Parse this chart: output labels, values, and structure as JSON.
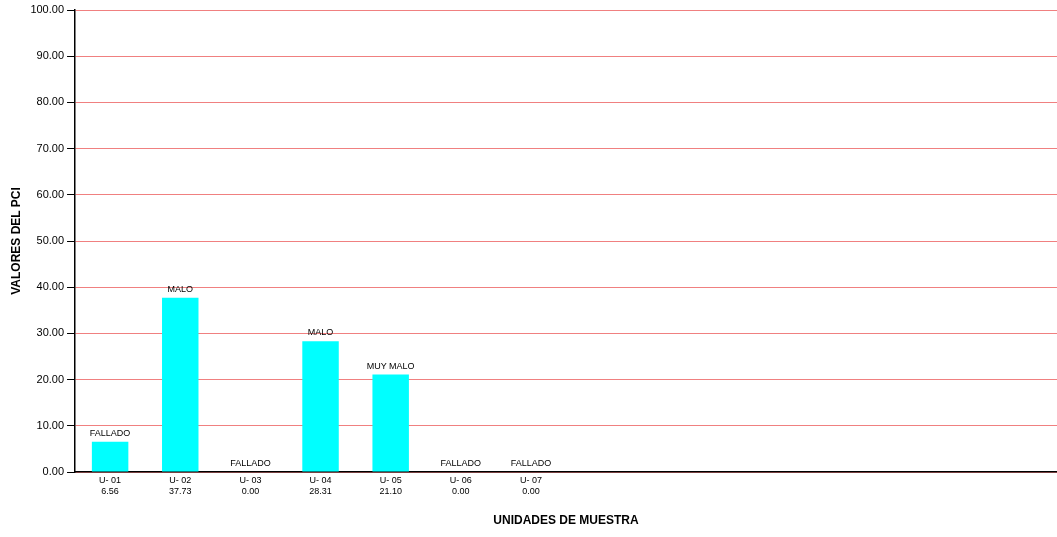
{
  "chart_data": {
    "type": "bar",
    "xlabel": "UNIDADES DE MUESTRA",
    "ylabel": "VALORES DEL PCI",
    "categories": [
      "U- 01",
      "U- 02",
      "U- 03",
      "U- 04",
      "U- 05",
      "U- 06",
      "U- 07",
      null,
      null,
      null,
      null,
      null,
      null,
      null
    ],
    "values": [
      6.56,
      37.73,
      0,
      28.31,
      21.1,
      0,
      0,
      null,
      null,
      null,
      null,
      null,
      null,
      null
    ],
    "value_labels": [
      "6.56",
      "37.73",
      "0.00",
      "28.31",
      "21.10",
      "0.00",
      "0.00",
      null,
      null,
      null,
      null,
      null,
      null,
      null
    ],
    "color": "#00ffff",
    "ylim": [
      0,
      100
    ],
    "yticks": [
      {
        "value": 0,
        "label": "0.00"
      },
      {
        "value": 10,
        "label": "10.00"
      },
      {
        "value": 20,
        "label": "20.00"
      },
      {
        "value": 30,
        "label": "30.00"
      },
      {
        "value": 40,
        "label": "40.00"
      },
      {
        "value": 50,
        "label": "50.00"
      },
      {
        "value": 60,
        "label": "60.00"
      },
      {
        "value": 70,
        "label": "70.00"
      },
      {
        "value": 80,
        "label": "80.00"
      },
      {
        "value": 90,
        "label": "90.00"
      },
      {
        "value": 100,
        "label": "100.00"
      }
    ],
    "grid": "y",
    "annotations": [
      {
        "text": "FALLADO",
        "x": "U- 01",
        "y": 6.56
      },
      {
        "text": "MALO",
        "x": "U- 02",
        "y": 37.73
      },
      {
        "text": "FALLADO",
        "x": "U- 03",
        "y": 0
      },
      {
        "text": "MALO",
        "x": "U- 04",
        "y": 28.31
      },
      {
        "text": "MUY MALO",
        "x": "U- 05",
        "y": 21.1
      },
      {
        "text": "FALLADO",
        "x": "U- 06",
        "y": 0
      },
      {
        "text": "FALLADO",
        "x": "U- 07",
        "y": 0
      }
    ]
  }
}
